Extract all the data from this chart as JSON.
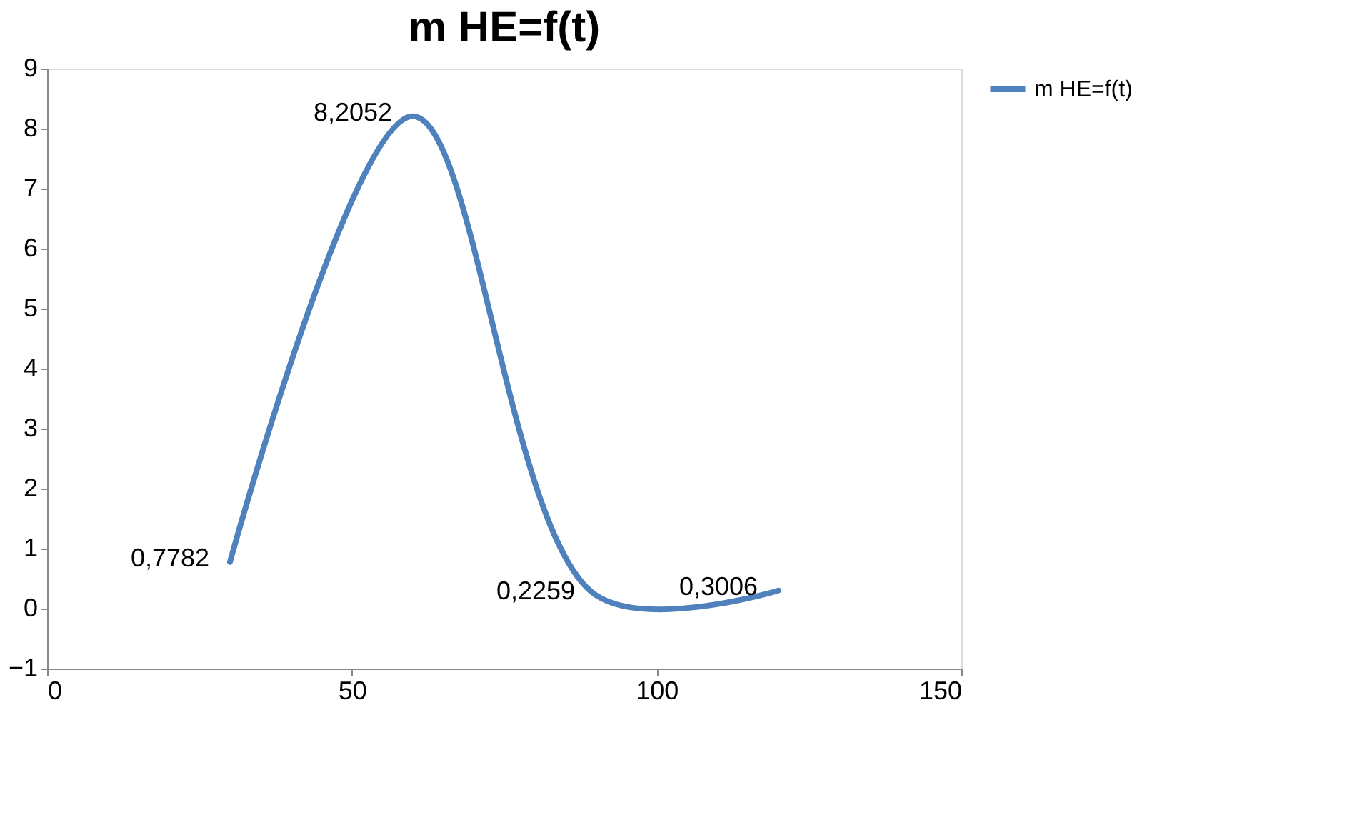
{
  "chart_data": {
    "type": "line",
    "title": "m HE=f(t)",
    "x": [
      30,
      60,
      90,
      120
    ],
    "series": [
      {
        "name": "m HE=f(t)",
        "color": "#4f81bd",
        "values": [
          0.7782,
          8.2052,
          0.2259,
          0.3006
        ]
      }
    ],
    "value_labels": [
      "0,7782",
      "8,2052",
      "0,2259",
      "0,3006"
    ],
    "xlim": [
      0,
      150
    ],
    "xticks": [
      0,
      50,
      100,
      150
    ],
    "ylim": [
      -1,
      9
    ],
    "yticks": [
      -1,
      0,
      1,
      2,
      3,
      4,
      5,
      6,
      7,
      8,
      9
    ],
    "legend": "right",
    "grid": false,
    "marker": "none",
    "line_style": "solid"
  }
}
